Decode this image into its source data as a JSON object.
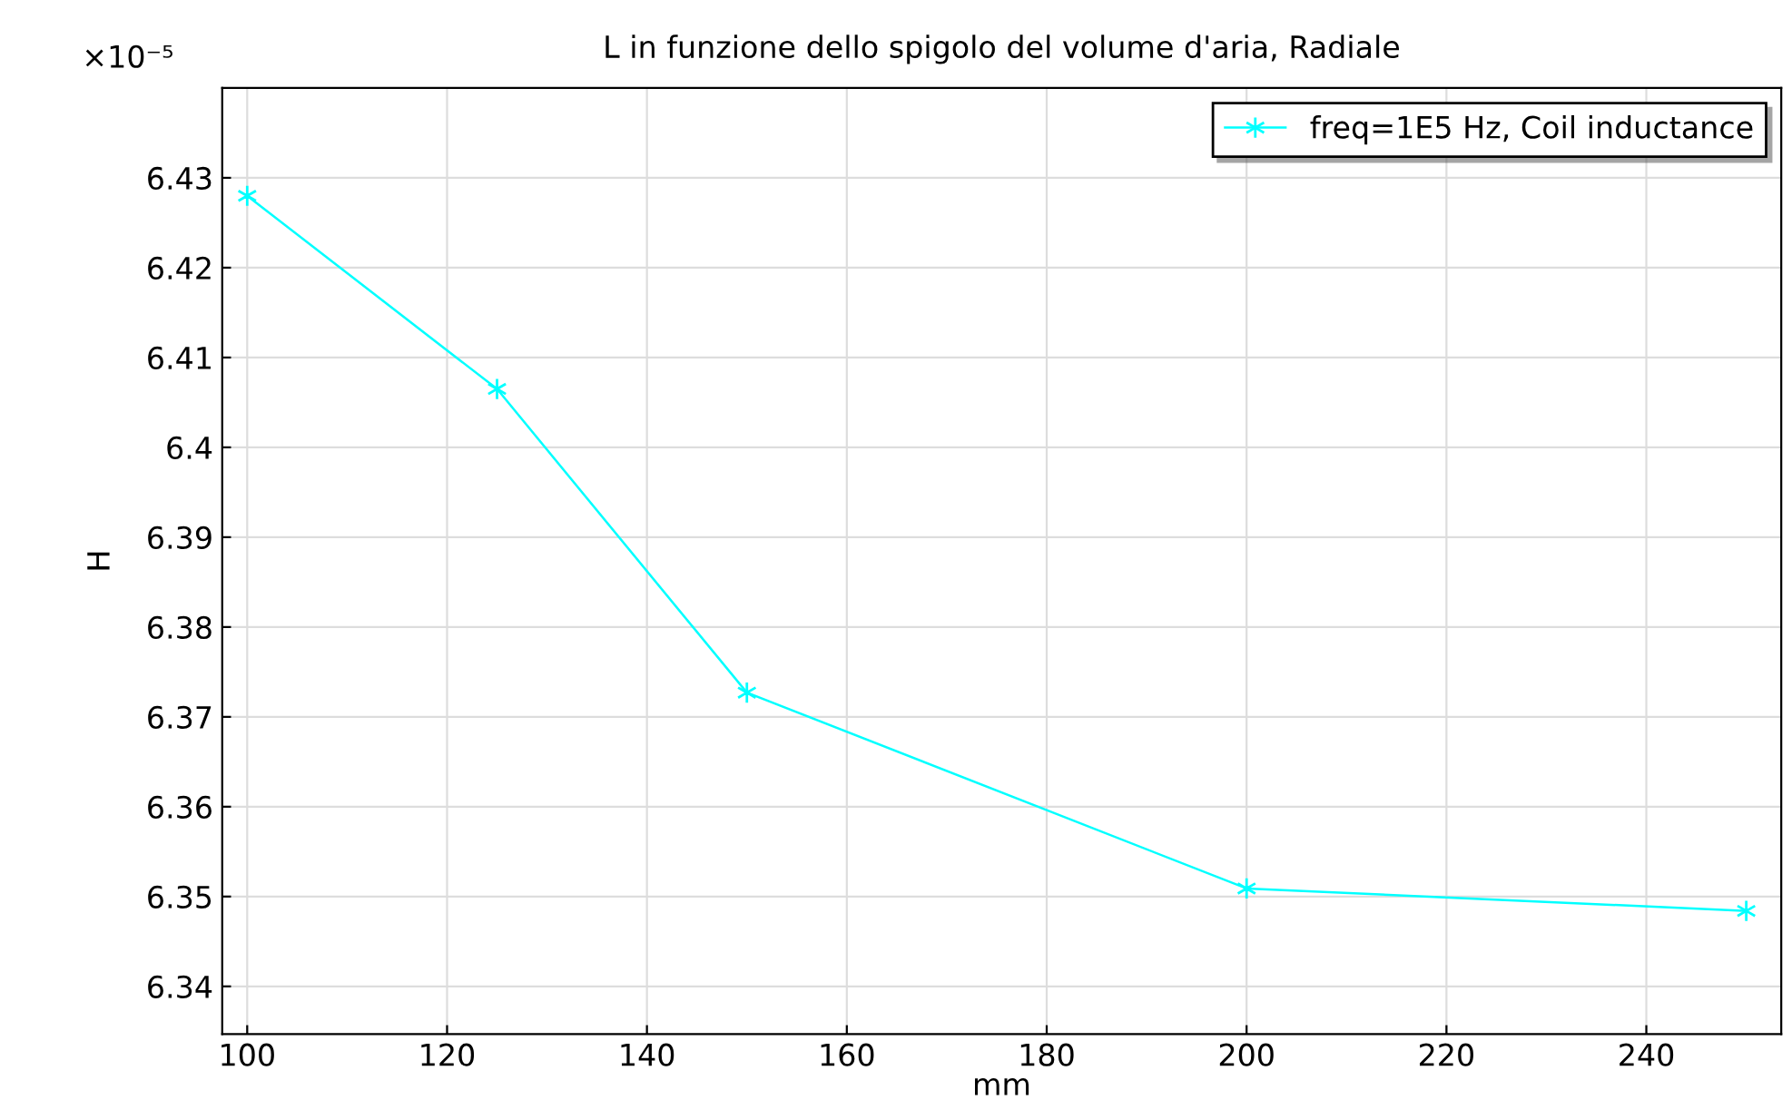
{
  "chart_data": {
    "type": "line",
    "title": "L in funzione dello spigolo del volume d'aria, Radiale",
    "xlabel": "mm",
    "ylabel": "H",
    "x": [
      100,
      125,
      150,
      200,
      250
    ],
    "series": [
      {
        "name": "freq=1E5 Hz, Coil inductance",
        "color": "#00ffff",
        "values": [
          6.428,
          6.4065,
          6.3727,
          6.3509,
          6.3484
        ]
      }
    ],
    "xlim": [
      97.5,
      253.5
    ],
    "xticks": [
      100,
      120,
      140,
      160,
      180,
      200,
      220,
      240
    ],
    "ylim": [
      6.3347,
      6.44
    ],
    "yticks": [
      6.34,
      6.35,
      6.36,
      6.37,
      6.38,
      6.39,
      {
        "value": 6.4,
        "label": "6.4"
      },
      6.41,
      6.42,
      6.43
    ],
    "annotations": [
      "×10⁻⁵"
    ],
    "grid": true,
    "legend": "top right",
    "marker": "cross",
    "line_style": "solid"
  }
}
